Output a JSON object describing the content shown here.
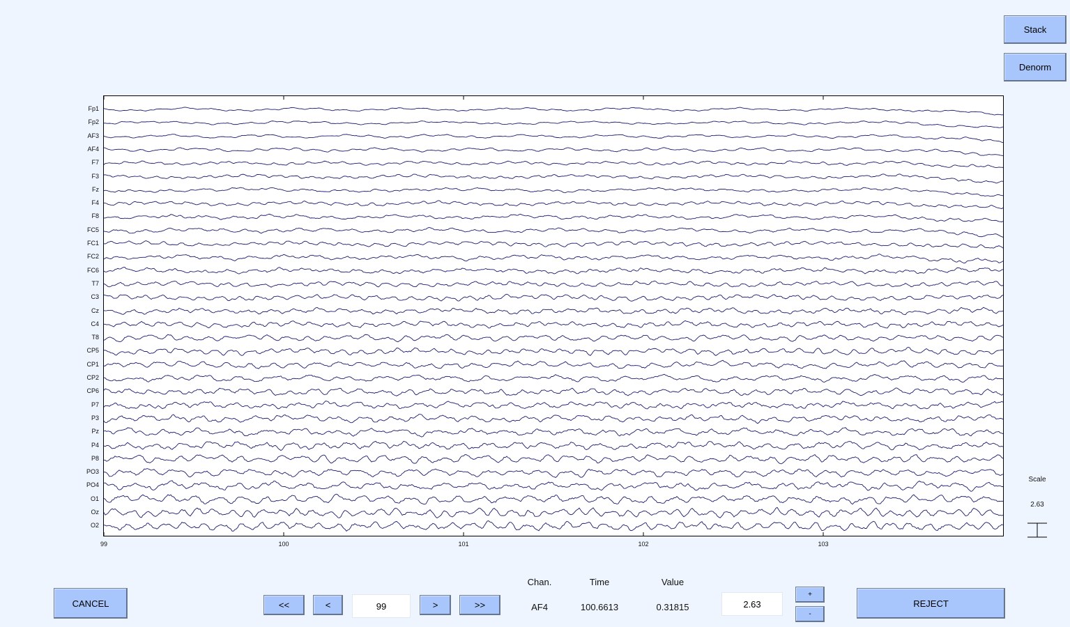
{
  "buttons": {
    "stack": "Stack",
    "denorm": "Denorm",
    "cancel": "CANCEL",
    "first": "<<",
    "prev": "<",
    "next": ">",
    "last": ">>",
    "plus": "+",
    "minus": "-",
    "reject": "REJECT"
  },
  "nav": {
    "position": "99"
  },
  "info": {
    "chan_label": "Chan.",
    "time_label": "Time",
    "value_label": "Value",
    "chan": "AF4",
    "time": "100.6613",
    "value": "0.31815"
  },
  "scale": {
    "field": "2.63",
    "label": "Scale",
    "value": "2.63"
  },
  "colors": {
    "trace": "#1a1a6e",
    "button": "#a8c6fb",
    "background": "#eef5fe"
  },
  "chart_data": {
    "type": "line",
    "channels": [
      "Fp1",
      "Fp2",
      "AF3",
      "AF4",
      "F7",
      "F3",
      "Fz",
      "F4",
      "F8",
      "FC5",
      "FC1",
      "FC2",
      "FC6",
      "T7",
      "C3",
      "Cz",
      "C4",
      "T8",
      "CP5",
      "CP1",
      "CP2",
      "CP6",
      "P7",
      "P3",
      "Pz",
      "P4",
      "P8",
      "PO3",
      "PO4",
      "O1",
      "Oz",
      "O2"
    ],
    "xlim": [
      99,
      104
    ],
    "xticks": [
      "99",
      "100",
      "101",
      "102",
      "103"
    ],
    "tick_values": [
      99,
      100,
      101,
      102,
      103
    ],
    "grid": false
  }
}
